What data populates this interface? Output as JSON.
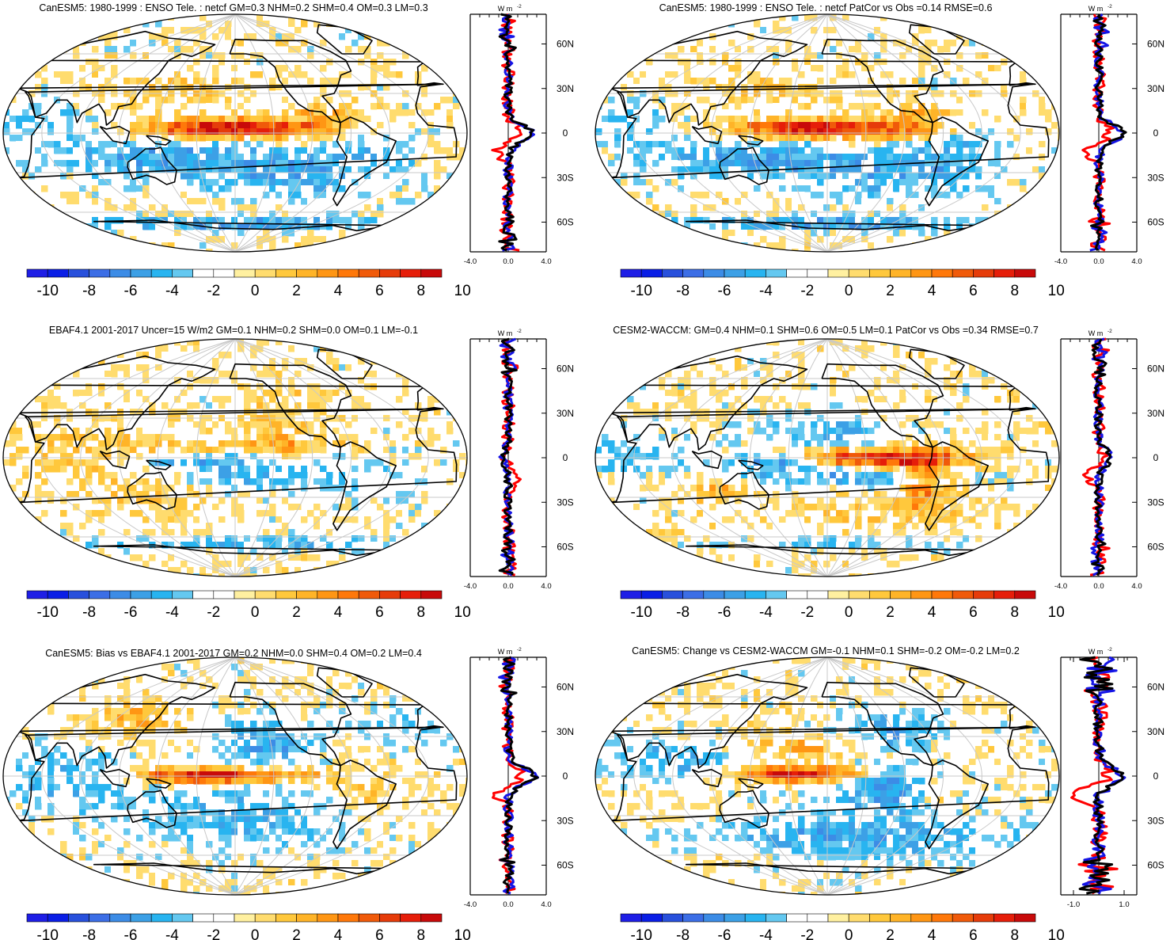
{
  "colors": {
    "levels": [
      "#1e1ee6",
      "#0a1ee6",
      "#2850dc",
      "#3c6ee6",
      "#3c8ce6",
      "#3ca0e6",
      "#28b4f0",
      "#64c8f0",
      "#ffffff",
      "#ffffff",
      "#fff0a0",
      "#ffdc6e",
      "#ffc83c",
      "#ffb428",
      "#ff9614",
      "#ff780a",
      "#f05a0a",
      "#e63c0a",
      "#e61e0a",
      "#c80a0a"
    ],
    "land": "#000000",
    "grid": "#c8c8c8",
    "model_line": "#000000",
    "obs_line": "#ff0000",
    "zonal_blue": "#1414e6"
  },
  "colorbar": {
    "tick_labels": [
      "-10",
      "-8",
      "-6",
      "-4",
      "-2",
      "0",
      "2",
      "4",
      "6",
      "8",
      "10"
    ]
  },
  "zonal": {
    "units_label": "W m",
    "units_sup": "-2",
    "lat_labels": [
      "60N",
      "30N",
      "0",
      "30S",
      "60S"
    ],
    "x_labels_default": [
      "-4.0",
      "0.0",
      "4.0"
    ],
    "x_labels_last": [
      "-1.0",
      "1.0"
    ]
  },
  "chart_data": [
    {
      "type": "heatmap",
      "title": "CanESM5: 1980-1999 : ENSO Tele. : netcf GM=0.3 NHM=0.2 SHM=0.4 OM=0.3 LM=0.3",
      "pattern": "enso_model",
      "colorbar_range": [
        -10,
        10
      ],
      "zonal_profile": {
        "xlim": [
          -4,
          4
        ],
        "lat_range": [
          -80,
          80
        ],
        "series": [
          {
            "name": "model",
            "color": "black"
          },
          {
            "name": "obs",
            "color": "red"
          },
          {
            "name": "ref",
            "color": "blue"
          }
        ],
        "equator_peak": 2.5
      }
    },
    {
      "type": "heatmap",
      "title": "CanESM5: 1980-1999 : ENSO Tele. : netcf PatCor vs Obs =0.14 RMSE=0.6",
      "pattern": "enso_model",
      "colorbar_range": [
        -10,
        10
      ],
      "zonal_profile": {
        "xlim": [
          -4,
          4
        ],
        "lat_range": [
          -80,
          80
        ],
        "series": [
          {
            "name": "model",
            "color": "black"
          },
          {
            "name": "obs",
            "color": "red"
          },
          {
            "name": "ref",
            "color": "blue"
          }
        ],
        "equator_peak": 2.5
      }
    },
    {
      "type": "heatmap",
      "title": "EBAF4.1 2001-2017 Uncer=15 W/m2 GM=0.1 NHM=0.2 SHM=0.0 OM=0.1 LM=-0.1",
      "pattern": "obs",
      "colorbar_range": [
        -10,
        10
      ],
      "zonal_profile": {
        "xlim": [
          -4,
          4
        ],
        "lat_range": [
          -80,
          80
        ],
        "series": [
          {
            "name": "model",
            "color": "black"
          },
          {
            "name": "obs",
            "color": "red"
          },
          {
            "name": "ref",
            "color": "blue"
          }
        ],
        "equator_peak": -0.5
      }
    },
    {
      "type": "heatmap",
      "title": "CESM2-WACCM: GM=0.4 NHM=0.1 SHM=0.6 OM=0.5 LM=0.1 PatCor vs Obs =0.34 RMSE=0.7",
      "pattern": "cesm",
      "colorbar_range": [
        -10,
        10
      ],
      "zonal_profile": {
        "xlim": [
          -4,
          4
        ],
        "lat_range": [
          -80,
          80
        ],
        "series": [
          {
            "name": "model",
            "color": "black"
          },
          {
            "name": "obs",
            "color": "red"
          },
          {
            "name": "ref",
            "color": "blue"
          }
        ],
        "equator_peak": 1.2
      }
    },
    {
      "type": "heatmap",
      "title": "CanESM5: Bias vs EBAF4.1 2001-2017 GM=0.2 NHM=0.0 SHM=0.4 OM=0.2 LM=0.4",
      "pattern": "bias",
      "colorbar_range": [
        -10,
        10
      ],
      "zonal_profile": {
        "xlim": [
          -4,
          4
        ],
        "lat_range": [
          -80,
          80
        ],
        "series": [
          {
            "name": "model",
            "color": "black"
          },
          {
            "name": "obs",
            "color": "red"
          },
          {
            "name": "ref",
            "color": "blue"
          }
        ],
        "equator_peak": 2.8
      }
    },
    {
      "type": "heatmap",
      "title": "CanESM5: Change vs CESM2-WACCM GM=-0.1 NHM=0.1 SHM=-0.2 OM=-0.2 LM=0.2",
      "pattern": "change",
      "colorbar_range": [
        -10,
        10
      ],
      "zonal_profile": {
        "xlim": [
          -1.5,
          1.5
        ],
        "lat_range": [
          -80,
          80
        ],
        "series": [
          {
            "name": "model",
            "color": "black"
          },
          {
            "name": "obs",
            "color": "red"
          },
          {
            "name": "ref",
            "color": "blue"
          }
        ],
        "equator_peak": 0.9
      }
    }
  ]
}
